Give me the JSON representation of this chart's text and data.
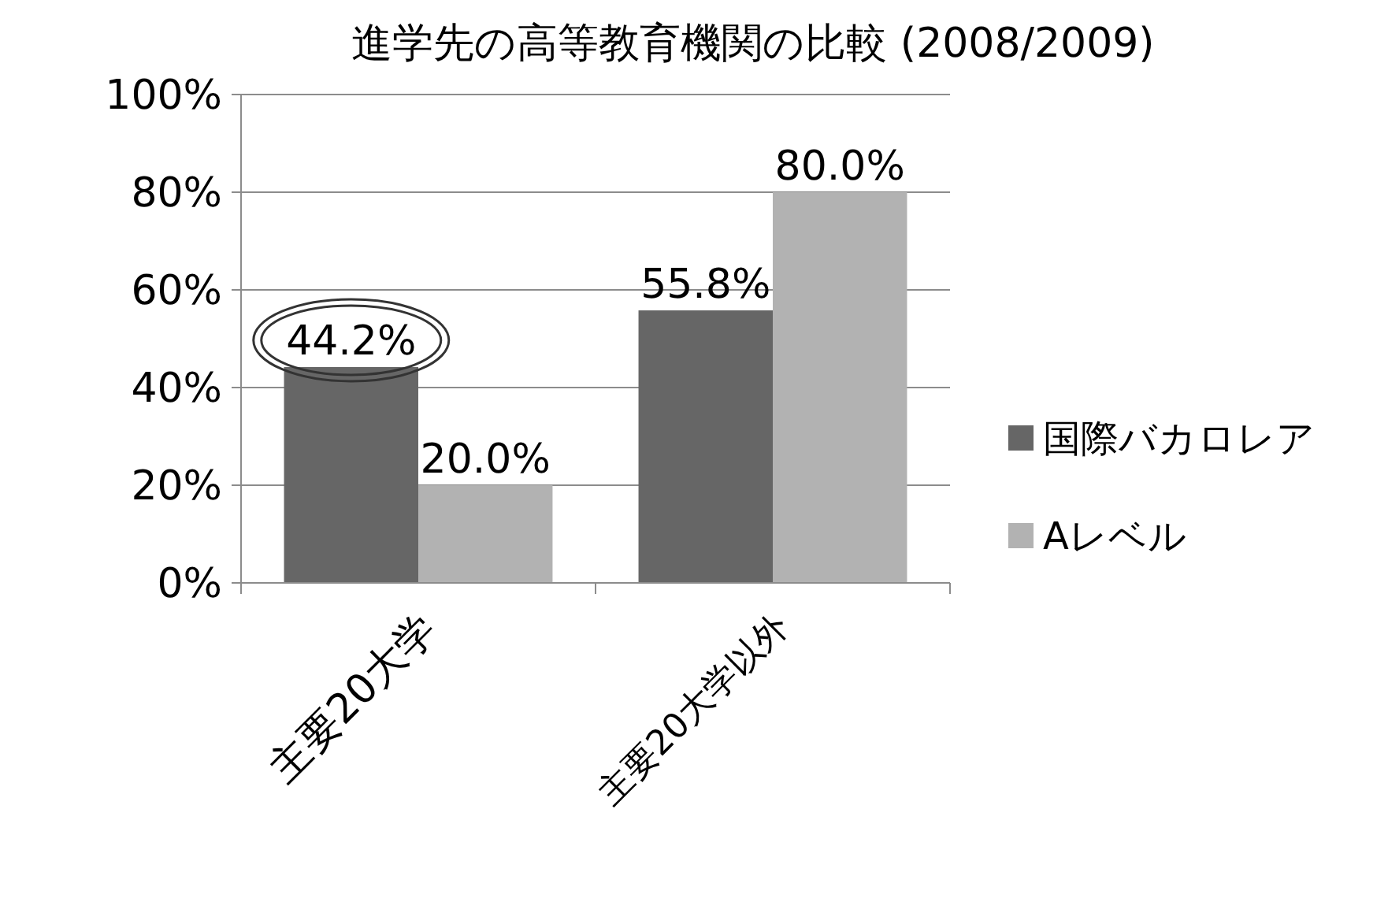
{
  "chart_data": {
    "type": "bar",
    "title": "進学先の高等教育機関の比較 (2008/2009)",
    "categories": [
      "主要20大学",
      "主要20大学以外"
    ],
    "series": [
      {
        "name": "国際バカロレア",
        "color": "#666666",
        "values": [
          44.2,
          55.8
        ],
        "value_labels": [
          "44.2%",
          "55.8%"
        ]
      },
      {
        "name": "Aレベル",
        "color": "#b2b2b2",
        "values": [
          20.0,
          80.0
        ],
        "value_labels": [
          "20.0%",
          "80.0%"
        ]
      }
    ],
    "ylim": [
      0,
      100
    ],
    "yticks": [
      {
        "value": 0,
        "label": "0%"
      },
      {
        "value": 20,
        "label": "20%"
      },
      {
        "value": 40,
        "label": "40%"
      },
      {
        "value": 60,
        "label": "60%"
      },
      {
        "value": 80,
        "label": "80%"
      },
      {
        "value": 100,
        "label": "100%"
      }
    ],
    "grid": "y",
    "legend": "right"
  }
}
